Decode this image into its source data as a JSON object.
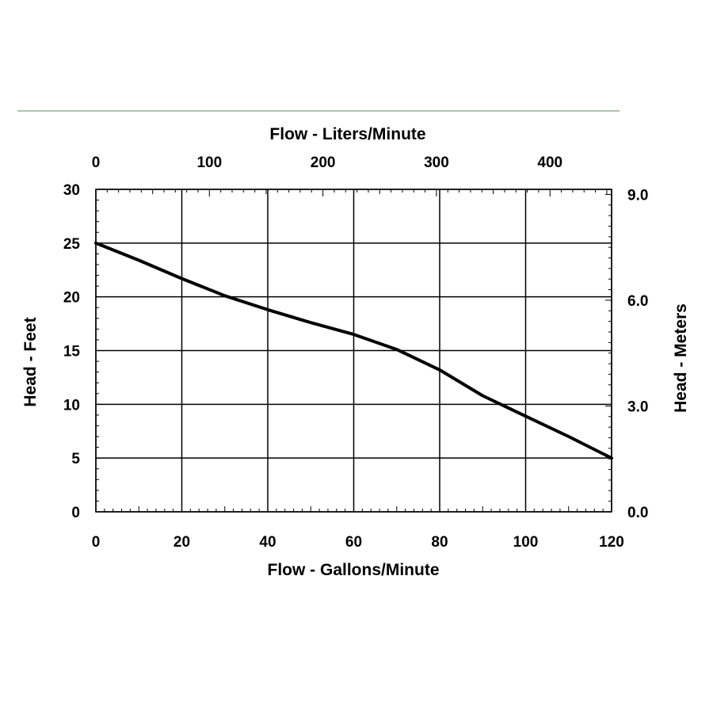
{
  "chart_data": {
    "type": "line",
    "xlabel": "Flow - Gallons/Minute",
    "x2label": "Flow - Liters/Minute",
    "ylabel": "Head - Feet",
    "y2label": "Head - Meters",
    "xlim": [
      0,
      120
    ],
    "ylim": [
      0,
      30
    ],
    "x_ticks": [
      0,
      20,
      40,
      60,
      80,
      100,
      120
    ],
    "x_tick_labels": [
      "0",
      "20",
      "40",
      "60",
      "80",
      "100",
      "120"
    ],
    "x2_ticks": [
      0,
      100,
      200,
      300,
      400
    ],
    "x2_tick_labels": [
      "0",
      "100",
      "200",
      "300",
      "400"
    ],
    "y_ticks": [
      0,
      5,
      10,
      15,
      20,
      25,
      30
    ],
    "y_tick_labels": [
      "0",
      "5",
      "10",
      "15",
      "20",
      "25",
      "30"
    ],
    "y2_ticks": [
      0,
      3,
      6,
      9
    ],
    "y2_tick_labels": [
      "0.0",
      "3.0",
      "6.0",
      "9.0"
    ],
    "grid": true,
    "colors": {
      "line": "#000000",
      "grid": "#000000",
      "rule": "#8fb08f"
    },
    "series": [
      {
        "x": [
          0,
          10,
          20,
          30,
          40,
          50,
          60,
          70,
          80,
          90,
          100,
          110,
          120
        ],
        "y": [
          25.0,
          23.4,
          21.7,
          20.1,
          18.8,
          17.6,
          16.5,
          15.1,
          13.2,
          10.8,
          8.9,
          7.0,
          5.0
        ]
      }
    ]
  }
}
